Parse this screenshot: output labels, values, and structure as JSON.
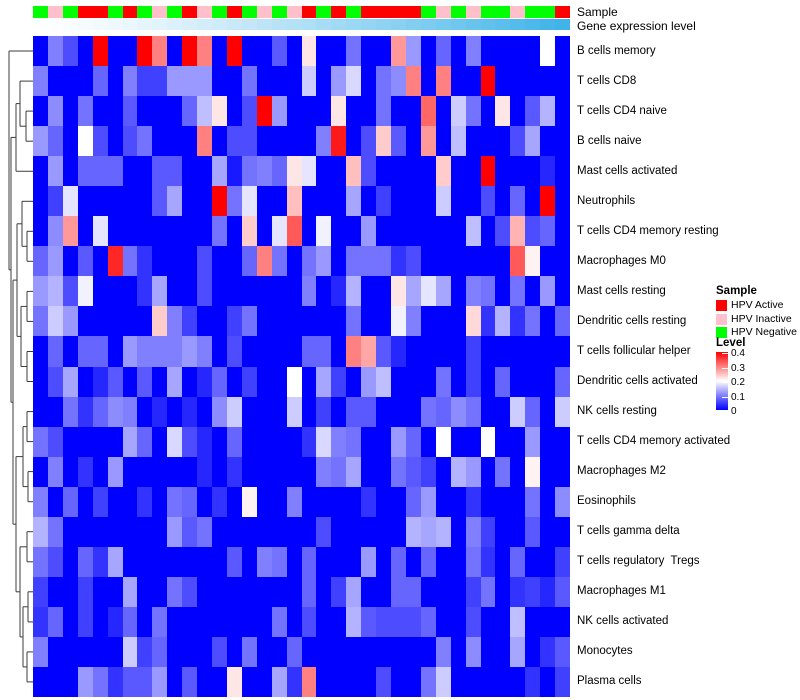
{
  "annotations": {
    "sample_label": "Sample",
    "expression_label": "Gene expression level"
  },
  "annotation_colors": {
    "red": "#FF0000",
    "pink": "#FFC0CB",
    "green": "#00FF00"
  },
  "expression_gradient": {
    "from": "#FFFFFF",
    "to": "#3CB2E8"
  },
  "legend": {
    "sample": {
      "title": "Sample",
      "items": [
        {
          "label": "HPV Active",
          "color": "#FF0000"
        },
        {
          "label": "HPV Inactive",
          "color": "#FFC0CB"
        },
        {
          "label": "HPV Negative",
          "color": "#00FF00"
        }
      ]
    },
    "level": {
      "title": "Level",
      "ticks": [
        "0.4",
        "0.3",
        "0.2",
        "0.1",
        "0"
      ]
    }
  },
  "chart_data": {
    "type": "heatmap",
    "title": "",
    "colormap": "blue-white-red",
    "value_range": [
      0,
      0.4
    ],
    "columns": 36,
    "rows": [
      "B cells memory",
      "T cells CD8",
      "T cells CD4 naive",
      "B cells naive",
      "Mast cells activated",
      "Neutrophils",
      "T cells CD4 memory resting",
      "Macrophages M0",
      "Mast cells resting",
      "Dendritic cells resting",
      "T cells follicular helper",
      "Dendritic cells activated",
      "NK cells resting",
      "T cells CD4 memory activated",
      "Macrophages M2",
      "Eosinophils",
      "T cells gamma delta",
      "T cells regulatory  Tregs",
      "Macrophages M1",
      "NK cells activated",
      "Monocytes",
      "Plasma cells"
    ],
    "sample_track": [
      "green",
      "pink",
      "green",
      "red",
      "red",
      "green",
      "red",
      "green",
      "pink",
      "green",
      "red",
      "pink",
      "green",
      "red",
      "green",
      "pink",
      "green",
      "pink",
      "red",
      "green",
      "red",
      "green",
      "red",
      "red",
      "red",
      "red",
      "green",
      "pink",
      "green",
      "pink",
      "green",
      "green",
      "pink",
      "green",
      "green",
      "red"
    ],
    "values": [
      [
        0,
        0.1,
        0.06,
        0,
        0.4,
        0,
        0,
        0.4,
        0.3,
        0,
        0.4,
        0.3,
        0,
        0.4,
        0,
        0,
        0.07,
        0,
        0.22,
        0,
        0,
        0.09,
        0,
        0,
        0.28,
        0.12,
        0,
        0.08,
        0,
        0.1,
        0,
        0,
        0,
        0,
        0.2,
        0
      ],
      [
        0.1,
        0,
        0,
        0,
        0.08,
        0,
        0.1,
        0.05,
        0.05,
        0.12,
        0.12,
        0.12,
        0,
        0,
        0.09,
        0,
        0,
        0,
        0.16,
        0,
        0.12,
        0.17,
        0,
        0.09,
        0.11,
        0.3,
        0,
        0.3,
        0,
        0,
        0.4,
        0,
        0,
        0,
        0,
        0
      ],
      [
        0,
        0.11,
        0,
        0.09,
        0,
        0,
        0.07,
        0,
        0,
        0,
        0.08,
        0.15,
        0.22,
        0,
        0.06,
        0.4,
        0.12,
        0,
        0,
        0,
        0.22,
        0,
        0,
        0.09,
        0,
        0,
        0.32,
        0,
        0.16,
        0.09,
        0,
        0.22,
        0,
        0.07,
        0.14,
        0
      ],
      [
        0.12,
        0.08,
        0,
        0.2,
        0.06,
        0,
        0.06,
        0.09,
        0,
        0,
        0,
        0.3,
        0,
        0.06,
        0.06,
        0,
        0,
        0,
        0,
        0.1,
        0.38,
        0,
        0.06,
        0.24,
        0.07,
        0,
        0.28,
        0,
        0.15,
        0,
        0,
        0,
        0.06,
        0.13,
        0,
        0
      ],
      [
        0,
        0.12,
        0,
        0.08,
        0.08,
        0.08,
        0,
        0,
        0.07,
        0.07,
        0,
        0,
        0.13,
        0.02,
        0.09,
        0.1,
        0.08,
        0.22,
        0.18,
        0,
        0,
        0.25,
        0.06,
        0,
        0,
        0,
        0,
        0.24,
        0,
        0,
        0.4,
        0,
        0,
        0,
        0.03,
        0
      ],
      [
        0,
        0.05,
        0.18,
        0,
        0,
        0,
        0,
        0,
        0.07,
        0.13,
        0,
        0,
        0.4,
        0.09,
        0.18,
        0,
        0,
        0.25,
        0,
        0,
        0,
        0.13,
        0,
        0.05,
        0,
        0,
        0,
        0.16,
        0,
        0,
        0.06,
        0,
        0.08,
        0,
        0.4,
        0
      ],
      [
        0,
        0.11,
        0.28,
        0,
        0.18,
        0,
        0,
        0,
        0,
        0,
        0,
        0,
        0.09,
        0,
        0.24,
        0,
        0.18,
        0.33,
        0,
        0.19,
        0,
        0,
        0.12,
        0,
        0,
        0,
        0,
        0,
        0,
        0.15,
        0,
        0.06,
        0.26,
        0.06,
        0.08,
        0
      ],
      [
        0.08,
        0.12,
        0,
        0.07,
        0,
        0.37,
        0.09,
        0.04,
        0,
        0,
        0,
        0.06,
        0,
        0,
        0.08,
        0.3,
        0.09,
        0,
        0.09,
        0.12,
        0,
        0.09,
        0.09,
        0.09,
        0.04,
        0.06,
        0,
        0,
        0,
        0,
        0,
        0,
        0.33,
        0.21,
        0,
        0
      ],
      [
        0.12,
        0.14,
        0.06,
        0.19,
        0,
        0,
        0,
        0.04,
        0.13,
        0,
        0,
        0.06,
        0,
        0,
        0,
        0,
        0,
        0,
        0.1,
        0,
        0.03,
        0.14,
        0,
        0,
        0.22,
        0.13,
        0.18,
        0.13,
        0,
        0.1,
        0.09,
        0,
        0.09,
        0,
        0.12,
        0
      ],
      [
        0.09,
        0.16,
        0.12,
        0,
        0,
        0,
        0,
        0,
        0.24,
        0.1,
        0.05,
        0,
        0,
        0.05,
        0.09,
        0,
        0,
        0,
        0,
        0,
        0,
        0.09,
        0,
        0,
        0.19,
        0.1,
        0,
        0,
        0,
        0.23,
        0.04,
        0.14,
        0.04,
        0.09,
        0,
        0.08
      ],
      [
        0,
        0.08,
        0,
        0.08,
        0.08,
        0,
        0.12,
        0.1,
        0.1,
        0.1,
        0.12,
        0.1,
        0,
        0.06,
        0,
        0,
        0,
        0,
        0.08,
        0.08,
        0,
        0.3,
        0.27,
        0.07,
        0.03,
        0,
        0,
        0,
        0,
        0.05,
        0,
        0,
        0,
        0,
        0,
        0
      ],
      [
        0,
        0.06,
        0.13,
        0,
        0.03,
        0.07,
        0,
        0.07,
        0,
        0.13,
        0,
        0.03,
        0.08,
        0,
        0.05,
        0,
        0,
        0.2,
        0,
        0.13,
        0.05,
        0,
        0.12,
        0.15,
        0,
        0,
        0,
        0.09,
        0,
        0.05,
        0,
        0.08,
        0,
        0,
        0,
        0.08
      ],
      [
        0,
        0,
        0.09,
        0.04,
        0.08,
        0.11,
        0.1,
        0,
        0.03,
        0,
        0.03,
        0,
        0.11,
        0.16,
        0,
        0,
        0,
        0.16,
        0,
        0.05,
        0,
        0.07,
        0.07,
        0,
        0,
        0,
        0.09,
        0.08,
        0.11,
        0.09,
        0,
        0,
        0.16,
        0.08,
        0,
        0.16
      ],
      [
        0.09,
        0.06,
        0,
        0,
        0,
        0,
        0.13,
        0.08,
        0,
        0.17,
        0.06,
        0.03,
        0,
        0.08,
        0,
        0,
        0,
        0,
        0.04,
        0.17,
        0.1,
        0.09,
        0,
        0,
        0.12,
        0.08,
        0,
        0.2,
        0,
        0,
        0.2,
        0,
        0,
        0.12,
        0,
        0
      ],
      [
        0,
        0.1,
        0,
        0.04,
        0,
        0.12,
        0,
        0,
        0,
        0,
        0,
        0.03,
        0,
        0.04,
        0,
        0,
        0,
        0,
        0,
        0.1,
        0.09,
        0.13,
        0,
        0,
        0.09,
        0.07,
        0.05,
        0,
        0.14,
        0.12,
        0,
        0.09,
        0,
        0.21,
        0,
        0
      ],
      [
        0.1,
        0,
        0.08,
        0,
        0.05,
        0,
        0,
        0.04,
        0,
        0.09,
        0.08,
        0,
        0.04,
        0,
        0.21,
        0,
        0,
        0.1,
        0,
        0,
        0,
        0,
        0.04,
        0,
        0,
        0.08,
        0.12,
        0,
        0,
        0.04,
        0,
        0,
        0,
        0.09,
        0,
        0.11
      ],
      [
        0.14,
        0.09,
        0,
        0,
        0,
        0,
        0,
        0,
        0,
        0.12,
        0.07,
        0.09,
        0,
        0,
        0,
        0,
        0,
        0,
        0,
        0.06,
        0,
        0,
        0,
        0,
        0,
        0.14,
        0.13,
        0.14,
        0,
        0.1,
        0.05,
        0,
        0,
        0.07,
        0,
        0
      ],
      [
        0.09,
        0.06,
        0,
        0.08,
        0.04,
        0.13,
        0,
        0,
        0,
        0,
        0,
        0,
        0,
        0.07,
        0,
        0.1,
        0.09,
        0,
        0.08,
        0,
        0,
        0,
        0.12,
        0,
        0.08,
        0,
        0.08,
        0,
        0,
        0.09,
        0.04,
        0,
        0.08,
        0,
        0,
        0.05
      ],
      [
        0.05,
        0,
        0,
        0.05,
        0,
        0,
        0.13,
        0,
        0,
        0.09,
        0.06,
        0,
        0,
        0,
        0,
        0,
        0,
        0,
        0.08,
        0,
        0.05,
        0.13,
        0,
        0,
        0.08,
        0.08,
        0,
        0,
        0,
        0.05,
        0.09,
        0,
        0.04,
        0.05,
        0.03,
        0.07
      ],
      [
        0.04,
        0.08,
        0,
        0.05,
        0,
        0.03,
        0.08,
        0,
        0.09,
        0,
        0,
        0,
        0,
        0,
        0,
        0,
        0.09,
        0,
        0.06,
        0,
        0,
        0.14,
        0.07,
        0.06,
        0.06,
        0.06,
        0.08,
        0,
        0,
        0.06,
        0,
        0,
        0.15,
        0,
        0,
        0
      ],
      [
        0.1,
        0,
        0,
        0,
        0,
        0,
        0.16,
        0.05,
        0.08,
        0,
        0,
        0,
        0.06,
        0,
        0.09,
        0,
        0,
        0.08,
        0,
        0,
        0,
        0,
        0,
        0,
        0,
        0,
        0,
        0.1,
        0,
        0.11,
        0,
        0,
        0.13,
        0,
        0.04,
        0.07
      ],
      [
        0,
        0,
        0,
        0.12,
        0.09,
        0.04,
        0.07,
        0.07,
        0.12,
        0,
        0.07,
        0,
        0,
        0.22,
        0,
        0,
        0.13,
        0.04,
        0.3,
        0,
        0,
        0,
        0,
        0.06,
        0,
        0,
        0.09,
        0.16,
        0,
        0,
        0,
        0,
        0,
        0.04,
        0,
        0.05
      ]
    ],
    "dendrogram_segments": [
      [
        9,
        51.0,
        33,
        51.0
      ],
      [
        9,
        51.0,
        9,
        269.8
      ],
      [
        9,
        269.8,
        11,
        269.8
      ],
      [
        11,
        137.4,
        11,
        402.2
      ],
      [
        11,
        137.4,
        16,
        137.4
      ],
      [
        11,
        402.2,
        13,
        402.2
      ],
      [
        16,
        103.6,
        16,
        171.2
      ],
      [
        16,
        103.6,
        20,
        103.6
      ],
      [
        16,
        171.2,
        33,
        171.2
      ],
      [
        20,
        81.1,
        20,
        126.2
      ],
      [
        20,
        81.1,
        33,
        81.1
      ],
      [
        20,
        126.2,
        26,
        126.2
      ],
      [
        26,
        111.1,
        26,
        141.2
      ],
      [
        26,
        111.1,
        33,
        111.1
      ],
      [
        26,
        141.2,
        33,
        141.2
      ],
      [
        13,
        280.1,
        13,
        524.2
      ],
      [
        13,
        280.1,
        17,
        280.1
      ],
      [
        13,
        524.2,
        16,
        524.2
      ],
      [
        17,
        223.8,
        17,
        336.4
      ],
      [
        17,
        223.8,
        22,
        223.8
      ],
      [
        17,
        336.4,
        21,
        336.4
      ],
      [
        22,
        201.3,
        22,
        246.3
      ],
      [
        22,
        201.3,
        33,
        201.3
      ],
      [
        22,
        246.3,
        27,
        246.3
      ],
      [
        27,
        231.3,
        27,
        261.3
      ],
      [
        27,
        231.3,
        33,
        231.3
      ],
      [
        27,
        261.3,
        33,
        261.3
      ],
      [
        21,
        306.4,
        21,
        366.5
      ],
      [
        21,
        306.4,
        27,
        306.4
      ],
      [
        21,
        366.5,
        27,
        366.5
      ],
      [
        27,
        291.4,
        27,
        321.4
      ],
      [
        27,
        291.4,
        33,
        291.4
      ],
      [
        27,
        321.4,
        33,
        321.4
      ],
      [
        27,
        351.5,
        27,
        381.5
      ],
      [
        27,
        351.5,
        33,
        351.5
      ],
      [
        27,
        381.5,
        33,
        381.5
      ],
      [
        16,
        456.6,
        16,
        591.8
      ],
      [
        16,
        456.6,
        23,
        456.6
      ],
      [
        16,
        591.8,
        20,
        591.8
      ],
      [
        23,
        426.6,
        23,
        486.6
      ],
      [
        23,
        426.6,
        27,
        426.6
      ],
      [
        23,
        486.6,
        28,
        486.6
      ],
      [
        27,
        411.6,
        27,
        441.6
      ],
      [
        27,
        411.6,
        33,
        411.6
      ],
      [
        27,
        441.6,
        33,
        441.6
      ],
      [
        28,
        471.6,
        28,
        501.7
      ],
      [
        28,
        471.6,
        33,
        471.6
      ],
      [
        28,
        501.7,
        33,
        501.7
      ],
      [
        20,
        546.8,
        20,
        636.9
      ],
      [
        20,
        546.8,
        27,
        546.8
      ],
      [
        20,
        636.9,
        23,
        636.9
      ],
      [
        27,
        531.7,
        27,
        561.8
      ],
      [
        27,
        531.7,
        33,
        531.7
      ],
      [
        27,
        561.8,
        33,
        561.8
      ],
      [
        23,
        606.8,
        23,
        666.9
      ],
      [
        23,
        606.8,
        28,
        606.8
      ],
      [
        23,
        666.9,
        27,
        666.9
      ],
      [
        28,
        591.8,
        28,
        621.9
      ],
      [
        28,
        591.8,
        33,
        591.8
      ],
      [
        28,
        621.9,
        33,
        621.9
      ],
      [
        27,
        651.9,
        27,
        681.9
      ],
      [
        27,
        651.9,
        33,
        651.9
      ],
      [
        27,
        681.9,
        33,
        681.9
      ]
    ]
  }
}
